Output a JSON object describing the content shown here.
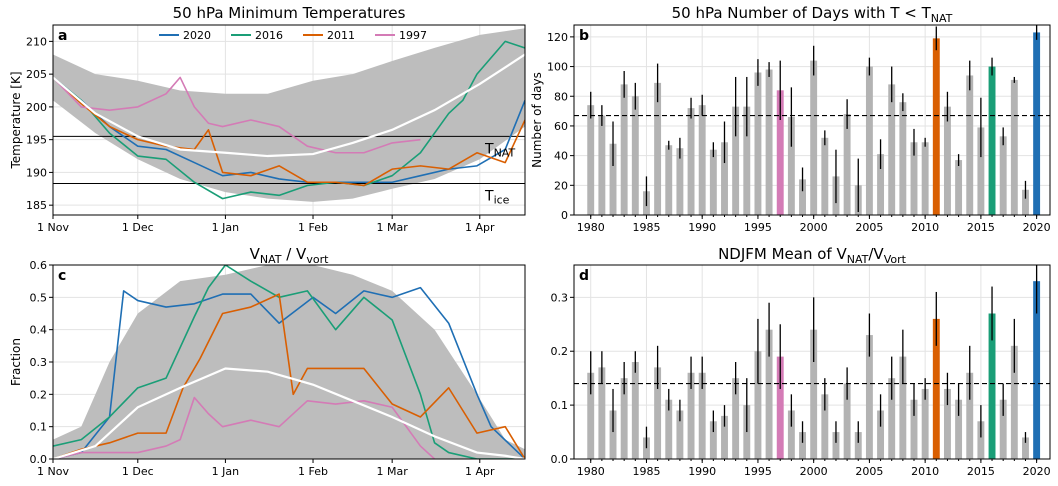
{
  "chart_data": [
    {
      "type": "line",
      "panel_label": "a",
      "title": "50 hPa Minimum Temperatures",
      "ylabel": "Temperature [K]",
      "xlabel": "",
      "x_ticks": [
        "1 Nov",
        "1 Dec",
        "1 Jan",
        "1 Feb",
        "1 Mar",
        "1 Apr"
      ],
      "x_tick_days": [
        0,
        30,
        61,
        92,
        120,
        151
      ],
      "xlim": [
        0,
        167
      ],
      "ylim": [
        183.5,
        212.5
      ],
      "y_ticks": [
        185,
        190,
        195,
        200,
        205,
        210
      ],
      "grid": true,
      "legend": "top-center",
      "reference_lines": [
        {
          "value": 195.5,
          "label_main": "T",
          "label_sub": "NAT"
        },
        {
          "value": 188.3,
          "label_main": "T",
          "label_sub": "ice"
        }
      ],
      "range_band": {
        "x": [
          0,
          15,
          30,
          45,
          61,
          76,
          92,
          106,
          120,
          135,
          151,
          167
        ],
        "upper": [
          208,
          205,
          204,
          202.5,
          202,
          202,
          204,
          205,
          207,
          209,
          211,
          212
        ],
        "lower": [
          201,
          196,
          192,
          189,
          187,
          186,
          185.5,
          186,
          187.5,
          189,
          192,
          197
        ]
      },
      "mean_line": {
        "x": [
          0,
          15,
          30,
          45,
          61,
          76,
          92,
          106,
          120,
          135,
          151,
          167
        ],
        "y": [
          204.5,
          199,
          195.5,
          193.5,
          193,
          192.5,
          192.8,
          194.5,
          196.5,
          199.5,
          203.5,
          208
        ]
      },
      "series": [
        {
          "name": "2020",
          "color": "#1f6fb4",
          "x": [
            0,
            10,
            20,
            30,
            40,
            50,
            60,
            70,
            80,
            90,
            100,
            110,
            120,
            130,
            140,
            150,
            160,
            167
          ],
          "y": [
            204.5,
            201,
            197,
            194,
            193.5,
            191.5,
            189.5,
            190,
            189,
            188.5,
            188.5,
            188.5,
            188.5,
            189.5,
            190.5,
            191,
            193.5,
            201
          ]
        },
        {
          "name": "2016",
          "color": "#1a9e77",
          "x": [
            0,
            10,
            20,
            30,
            40,
            50,
            60,
            70,
            80,
            90,
            100,
            110,
            120,
            130,
            140,
            145,
            150,
            160,
            167
          ],
          "y": [
            204.5,
            201,
            196,
            192.5,
            192,
            188.5,
            186,
            187,
            186.5,
            188,
            188.5,
            188,
            189.5,
            193,
            199,
            201,
            205,
            210,
            209
          ]
        },
        {
          "name": "2011",
          "color": "#d95f02",
          "x": [
            0,
            10,
            20,
            30,
            40,
            50,
            55,
            60,
            70,
            80,
            90,
            100,
            110,
            120,
            130,
            140,
            150,
            160,
            167
          ],
          "y": [
            204.5,
            200.5,
            197,
            195,
            194,
            193.5,
            196.5,
            190,
            189.5,
            191,
            188.5,
            188.5,
            188,
            190.5,
            191,
            190.5,
            193,
            191.5,
            198
          ]
        },
        {
          "name": "1997",
          "color": "#d47bb6",
          "x": [
            0,
            10,
            20,
            30,
            40,
            45,
            50,
            55,
            60,
            70,
            80,
            90,
            100,
            110,
            120,
            130
          ],
          "y": [
            204.5,
            200,
            199.5,
            200,
            202,
            204.5,
            200,
            197.5,
            197,
            198,
            197,
            194,
            193,
            193,
            194.5,
            195
          ]
        }
      ]
    },
    {
      "type": "bar",
      "panel_label": "b",
      "title_main": "50 hPa Number of Days with T < T",
      "title_sub": "NAT",
      "ylabel": "Number of days",
      "xlabel": "",
      "years": [
        1980,
        1981,
        1982,
        1983,
        1984,
        1985,
        1986,
        1987,
        1988,
        1989,
        1990,
        1991,
        1992,
        1993,
        1994,
        1995,
        1996,
        1997,
        1998,
        1999,
        2000,
        2001,
        2002,
        2003,
        2004,
        2005,
        2006,
        2007,
        2008,
        2009,
        2010,
        2011,
        2012,
        2013,
        2014,
        2015,
        2016,
        2017,
        2018,
        2019,
        2020
      ],
      "values": [
        74,
        67,
        48,
        88,
        80,
        16,
        89,
        47,
        45,
        72,
        74,
        44,
        49,
        73,
        73,
        96,
        98,
        84,
        66,
        24,
        104,
        52,
        26,
        68,
        20,
        100,
        41,
        88,
        76,
        49,
        49,
        119,
        73,
        37,
        94,
        59,
        100,
        53,
        91,
        17,
        123
      ],
      "errors": [
        9,
        7,
        15,
        9,
        9,
        10,
        13,
        3,
        7,
        7,
        7,
        5,
        14,
        20,
        20,
        9,
        5,
        20,
        20,
        8,
        10,
        5,
        18,
        10,
        18,
        6,
        10,
        12,
        6,
        9,
        3,
        8,
        10,
        4,
        10,
        20,
        6,
        6,
        2,
        6,
        5
      ],
      "highlight_colors": {
        "1997": "#d47bb6",
        "2011": "#d95f02",
        "2016": "#1a9e77",
        "2020": "#1f6fb4"
      },
      "mean_line": 67,
      "ylim": [
        0,
        128
      ],
      "y_ticks": [
        0,
        20,
        40,
        60,
        80,
        100,
        120
      ],
      "x_ticks": [
        1980,
        1985,
        1990,
        1995,
        2000,
        2005,
        2010,
        2015,
        2020
      ],
      "grid": true
    },
    {
      "type": "line",
      "panel_label": "c",
      "title_parts": [
        {
          "main": "V",
          "sub": "NAT"
        },
        {
          "main": " / V",
          "sub": "vort"
        }
      ],
      "ylabel": "Fraction",
      "xlabel": "",
      "x_ticks": [
        "1 Nov",
        "1 Dec",
        "1 Jan",
        "1 Feb",
        "1 Mar",
        "1 Apr"
      ],
      "x_tick_days": [
        0,
        30,
        61,
        92,
        120,
        151
      ],
      "xlim": [
        0,
        167
      ],
      "ylim": [
        0,
        0.6
      ],
      "y_ticks": [
        0,
        0.1,
        0.2,
        0.3,
        0.4,
        0.5,
        0.6
      ],
      "grid": true,
      "range_band": {
        "x": [
          0,
          10,
          20,
          30,
          45,
          61,
          76,
          92,
          106,
          120,
          135,
          150,
          160,
          167
        ],
        "upper": [
          0.06,
          0.1,
          0.3,
          0.45,
          0.55,
          0.57,
          0.6,
          0.6,
          0.57,
          0.52,
          0.4,
          0.2,
          0.06,
          0.03
        ],
        "lower": [
          0,
          0,
          0,
          0,
          0,
          0,
          0,
          0,
          0,
          0,
          0,
          0,
          0,
          0
        ]
      },
      "mean_line": {
        "x": [
          0,
          15,
          30,
          45,
          61,
          76,
          92,
          106,
          120,
          135,
          150,
          160,
          167
        ],
        "y": [
          0,
          0.04,
          0.16,
          0.22,
          0.28,
          0.27,
          0.23,
          0.18,
          0.13,
          0.07,
          0.02,
          0.01,
          0
        ]
      },
      "series": [
        {
          "name": "2020",
          "color": "#1f6fb4",
          "x": [
            0,
            10,
            20,
            25,
            30,
            40,
            50,
            60,
            70,
            80,
            92,
            100,
            110,
            120,
            130,
            140,
            150,
            155,
            167
          ],
          "y": [
            0,
            0.02,
            0.13,
            0.52,
            0.49,
            0.47,
            0.48,
            0.51,
            0.51,
            0.42,
            0.5,
            0.45,
            0.52,
            0.5,
            0.53,
            0.42,
            0.2,
            0.1,
            0
          ]
        },
        {
          "name": "2016",
          "color": "#1a9e77",
          "x": [
            0,
            10,
            20,
            30,
            40,
            50,
            55,
            61,
            70,
            80,
            90,
            100,
            110,
            120,
            130,
            135,
            140,
            150,
            167
          ],
          "y": [
            0.04,
            0.06,
            0.13,
            0.22,
            0.25,
            0.44,
            0.53,
            0.6,
            0.55,
            0.5,
            0.52,
            0.4,
            0.5,
            0.43,
            0.2,
            0.05,
            0.02,
            0,
            0
          ]
        },
        {
          "name": "2011",
          "color": "#d95f02",
          "x": [
            0,
            10,
            20,
            30,
            40,
            46,
            52,
            60,
            70,
            80,
            85,
            90,
            100,
            110,
            120,
            130,
            140,
            150,
            160,
            167
          ],
          "y": [
            0,
            0.03,
            0.05,
            0.08,
            0.08,
            0.22,
            0.31,
            0.45,
            0.47,
            0.51,
            0.2,
            0.28,
            0.28,
            0.28,
            0.17,
            0.13,
            0.22,
            0.08,
            0.1,
            0
          ]
        },
        {
          "name": "1997",
          "color": "#d47bb6",
          "x": [
            0,
            10,
            20,
            30,
            40,
            45,
            50,
            55,
            60,
            70,
            80,
            90,
            100,
            110,
            120,
            130,
            135
          ],
          "y": [
            0,
            0.02,
            0.02,
            0.02,
            0.04,
            0.06,
            0.19,
            0.14,
            0.1,
            0.12,
            0.1,
            0.18,
            0.17,
            0.18,
            0.16,
            0.04,
            0
          ]
        }
      ]
    },
    {
      "type": "bar",
      "panel_label": "d",
      "title_main": "NDJFM Mean of V",
      "title_sub1": "NAT",
      "title_mid": "/V",
      "title_sub2": "Vort",
      "ylabel": "",
      "xlabel": "",
      "years": [
        1980,
        1981,
        1982,
        1983,
        1984,
        1985,
        1986,
        1987,
        1988,
        1989,
        1990,
        1991,
        1992,
        1993,
        1994,
        1995,
        1996,
        1997,
        1998,
        1999,
        2000,
        2001,
        2002,
        2003,
        2004,
        2005,
        2006,
        2007,
        2008,
        2009,
        2010,
        2011,
        2012,
        2013,
        2014,
        2015,
        2016,
        2017,
        2018,
        2019,
        2020
      ],
      "values": [
        0.16,
        0.17,
        0.09,
        0.15,
        0.18,
        0.04,
        0.17,
        0.11,
        0.09,
        0.16,
        0.16,
        0.07,
        0.08,
        0.15,
        0.1,
        0.2,
        0.24,
        0.19,
        0.09,
        0.05,
        0.24,
        0.12,
        0.05,
        0.14,
        0.05,
        0.23,
        0.09,
        0.15,
        0.19,
        0.11,
        0.13,
        0.26,
        0.13,
        0.11,
        0.16,
        0.07,
        0.27,
        0.11,
        0.21,
        0.04,
        0.33
      ],
      "errors": [
        0.04,
        0.03,
        0.04,
        0.03,
        0.02,
        0.02,
        0.04,
        0.02,
        0.02,
        0.03,
        0.03,
        0.02,
        0.02,
        0.03,
        0.05,
        0.06,
        0.05,
        0.06,
        0.03,
        0.02,
        0.06,
        0.03,
        0.02,
        0.03,
        0.02,
        0.04,
        0.03,
        0.04,
        0.05,
        0.03,
        0.02,
        0.05,
        0.03,
        0.03,
        0.05,
        0.03,
        0.05,
        0.03,
        0.05,
        0.01,
        0.06
      ],
      "highlight_colors": {
        "1997": "#d47bb6",
        "2011": "#d95f02",
        "2016": "#1a9e77",
        "2020": "#1f6fb4"
      },
      "mean_line": 0.14,
      "ylim": [
        0,
        0.36
      ],
      "y_ticks": [
        0,
        0.1,
        0.2,
        0.3
      ],
      "x_ticks": [
        1980,
        1985,
        1990,
        1995,
        2000,
        2005,
        2010,
        2015,
        2020
      ],
      "grid": true
    }
  ],
  "colors": {
    "band": "#bdbdbd",
    "bar": "#b3b3b3",
    "mean": "#ffffff",
    "errorbar": "#000000",
    "grid": "#e3e3e3",
    "ref": "#000000"
  }
}
